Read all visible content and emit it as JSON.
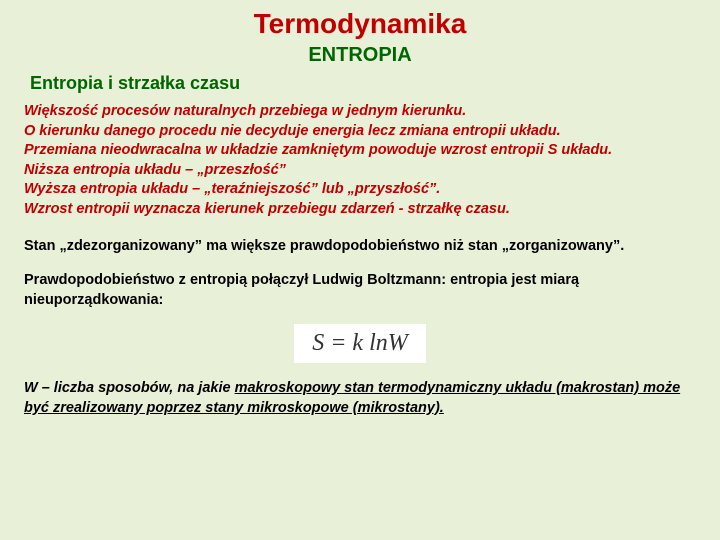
{
  "colors": {
    "background": "#e8f0d8",
    "title_red": "#c00000",
    "heading_green": "#006600",
    "body_black": "#000000",
    "formula_bg": "#ffffff",
    "formula_text": "#333333"
  },
  "typography": {
    "title_fontsize": 28,
    "subtitle_fontsize": 20,
    "section_fontsize": 18,
    "body_fontsize": 14.5,
    "formula_fontsize": 24,
    "body_font": "Arial",
    "formula_font": "Times New Roman"
  },
  "title": "Termodynamika",
  "subtitle": "ENTROPIA",
  "section_heading": "Entropia i strzałka czasu",
  "red_paragraph": "Większość procesów naturalnych przebiega w jednym kierunku.\nO kierunku danego procedu nie decyduje energia lecz zmiana entropii układu.\nPrzemiana nieodwracalna w układzie zamkniętym powoduje wzrost entropii S układu.\nNiższa entropia układu – „przeszłość”\nWyższa entropia układu – „teraźniejszość” lub „przyszłość”.\nWzrost entropii wyznacza kierunek przebiegu zdarzeń - strzałkę czasu.",
  "black_p1": "Stan „zdezorganizowany” ma większe prawdopodobieństwo niż stan „zorganizowany”.",
  "black_p2": "Prawdopodobieństwo z entropią połączył Ludwig Boltzmann: entropia jest miarą nieuporządkowania:",
  "formula": "S = k lnW",
  "footnote_pre": "W – liczba sposobów, na jakie ",
  "footnote_underlined": "makroskopowy stan termodynamiczny układu (makrostan) może być zrealizowany poprzez stany mikroskopowe (mikrostany).",
  "footnote_italic": true
}
